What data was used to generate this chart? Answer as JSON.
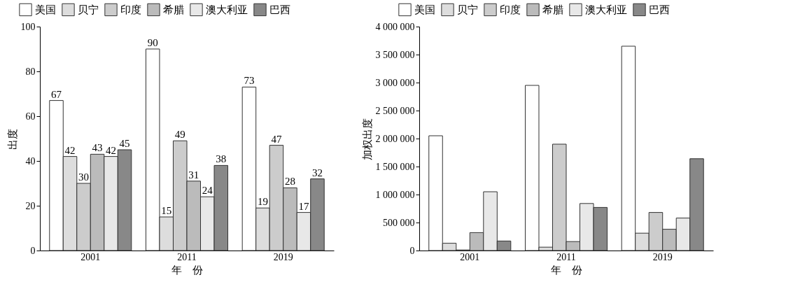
{
  "chart_data": [
    {
      "type": "bar",
      "xlabel": "年　份",
      "ylabel": "出度",
      "categories": [
        "2001",
        "2011",
        "2019"
      ],
      "series": [
        {
          "name": "美国",
          "color": "#ffffff",
          "values": [
            67,
            90,
            73
          ]
        },
        {
          "name": "贝宁",
          "color": "#dddddd",
          "values": [
            42,
            15,
            19
          ]
        },
        {
          "name": "印度",
          "color": "#cccccc",
          "values": [
            30,
            49,
            47
          ]
        },
        {
          "name": "希腊",
          "color": "#bbbbbb",
          "values": [
            43,
            31,
            28
          ]
        },
        {
          "name": "澳大利亚",
          "color": "#e8e8e8",
          "values": [
            42,
            24,
            17
          ]
        },
        {
          "name": "巴西",
          "color": "#888888",
          "values": [
            45,
            38,
            32
          ]
        }
      ],
      "ylim": [
        0,
        100
      ],
      "yticks": [
        0,
        20,
        40,
        60,
        80,
        100
      ],
      "data_labels": true,
      "legend": "top",
      "grid": false
    },
    {
      "type": "bar",
      "xlabel": "年　份",
      "ylabel": "加权出度",
      "categories": [
        "2001",
        "2011",
        "2019"
      ],
      "series": [
        {
          "name": "美国",
          "color": "#ffffff",
          "values": [
            2050000,
            2950000,
            3650000
          ]
        },
        {
          "name": "贝宁",
          "color": "#dddddd",
          "values": [
            130000,
            60000,
            310000
          ]
        },
        {
          "name": "印度",
          "color": "#cccccc",
          "values": [
            10000,
            1900000,
            680000
          ]
        },
        {
          "name": "希腊",
          "color": "#bbbbbb",
          "values": [
            320000,
            160000,
            380000
          ]
        },
        {
          "name": "澳大利亚",
          "color": "#e8e8e8",
          "values": [
            1050000,
            840000,
            580000
          ]
        },
        {
          "name": "巴西",
          "color": "#888888",
          "values": [
            170000,
            770000,
            1640000
          ]
        }
      ],
      "ylim": [
        0,
        4000000
      ],
      "yticks": [
        {
          "value": 0,
          "label": "0"
        },
        {
          "value": 500000,
          "label": "500 000"
        },
        {
          "value": 1000000,
          "label": "1 000 000"
        },
        {
          "value": 1500000,
          "label": "1 500 000"
        },
        {
          "value": 2000000,
          "label": "2 000 000"
        },
        {
          "value": 2500000,
          "label": "2 500 000"
        },
        {
          "value": 3000000,
          "label": "3 000 000"
        },
        {
          "value": 3500000,
          "label": "3 500 000"
        },
        {
          "value": 4000000,
          "label": "4 000 000"
        }
      ],
      "legend": "top",
      "grid": false
    }
  ]
}
